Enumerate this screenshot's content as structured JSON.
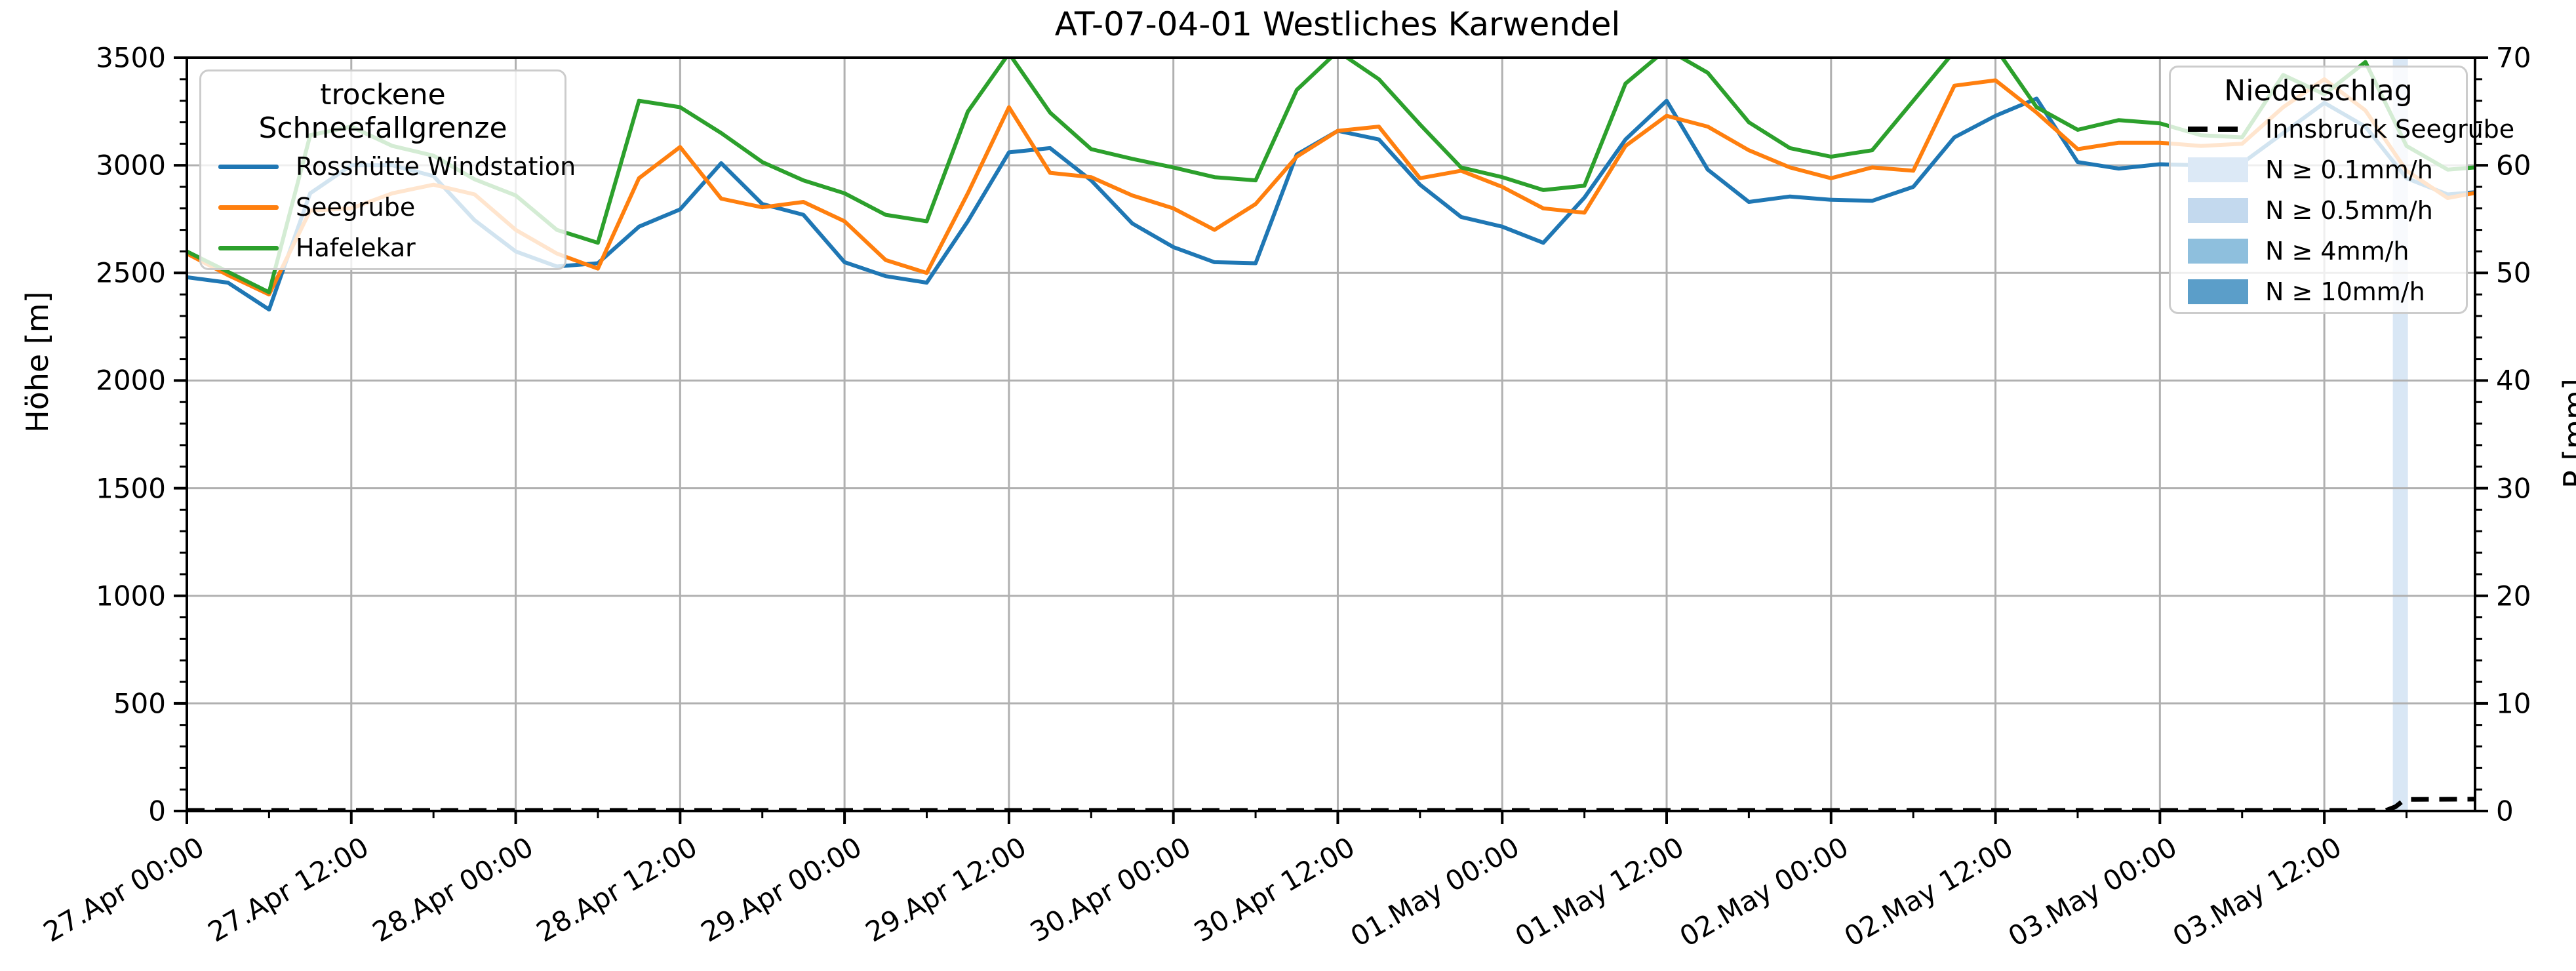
{
  "title": "AT-07-04-01 Westliches Karwendel",
  "chart_data": {
    "type": "line",
    "title": "AT-07-04-01 Westliches Karwendel",
    "x_axis": {
      "major_interval_hours": 12,
      "minor_interval_hours": 6,
      "total_hours": 167,
      "major_tick_labels": [
        "27.Apr 00:00",
        "27.Apr 12:00",
        "28.Apr 00:00",
        "28.Apr 12:00",
        "29.Apr 00:00",
        "29.Apr 12:00",
        "30.Apr 00:00",
        "30.Apr 12:00",
        "01.May 00:00",
        "01.May 12:00",
        "02.May 00:00",
        "02.May 12:00",
        "03.May 00:00",
        "03.May 12:00"
      ]
    },
    "y_left": {
      "label": "Höhe [m]",
      "min": 0,
      "max": 3500,
      "major_step": 500,
      "minor_step": 100,
      "tick_labels": [
        "0",
        "500",
        "1000",
        "1500",
        "2000",
        "2500",
        "3000",
        "3500"
      ]
    },
    "y_right": {
      "label": "P [mm]",
      "min": 0,
      "max": 70,
      "major_step": 10,
      "minor_step": 2,
      "tick_labels": [
        "0",
        "10",
        "20",
        "30",
        "40",
        "50",
        "60",
        "70"
      ]
    },
    "grid": true,
    "legend_left": {
      "title": "trockene Schneefallgrenze",
      "entries": [
        {
          "label": "Rosshütte Windstation",
          "color": "#1f77b4"
        },
        {
          "label": "Seegrube",
          "color": "#ff7f0e"
        },
        {
          "label": "Hafelekar",
          "color": "#2ca02c"
        }
      ]
    },
    "legend_right": {
      "title": "Niederschlag",
      "entries": [
        {
          "label": "Innsbruck Seegrube",
          "type": "dash",
          "color": "#000000"
        },
        {
          "label": "N ≥ 0.1mm/h",
          "type": "patch",
          "color": "#dce9f6"
        },
        {
          "label": "N ≥ 0.5mm/h",
          "type": "patch",
          "color": "#c3d9ee"
        },
        {
          "label": "N ≥ 4mm/h",
          "type": "patch",
          "color": "#8ebfdd"
        },
        {
          "label": "N ≥ 10mm/h",
          "type": "patch",
          "color": "#5b9ec9"
        }
      ]
    },
    "series_hours": [
      0,
      3,
      6,
      9,
      12,
      15,
      18,
      21,
      24,
      27,
      30,
      33,
      36,
      39,
      42,
      45,
      48,
      51,
      54,
      57,
      60,
      63,
      66,
      69,
      72,
      75,
      78,
      81,
      84,
      87,
      90,
      93,
      96,
      99,
      102,
      105,
      108,
      111,
      114,
      117,
      120,
      123,
      126,
      129,
      132,
      135,
      138,
      141,
      144,
      147,
      150,
      153,
      156,
      159,
      162,
      165,
      167
    ],
    "series": [
      {
        "name": "Rosshütte Windstation",
        "color": "#1f77b4",
        "values": [
          2480,
          2455,
          2330,
          2870,
          3000,
          3000,
          2950,
          2745,
          2600,
          2530,
          2545,
          2715,
          2795,
          3010,
          2820,
          2770,
          2550,
          2485,
          2455,
          2740,
          3060,
          3080,
          2930,
          2730,
          2620,
          2550,
          2545,
          3050,
          3160,
          3120,
          2910,
          2760,
          2715,
          2640,
          2850,
          3120,
          3300,
          2980,
          2830,
          2855,
          2840,
          2835,
          2900,
          3130,
          3230,
          3310,
          3015,
          2985,
          3005,
          3000,
          3010,
          3150,
          3290,
          3180,
          2940,
          2865,
          2875
        ]
      },
      {
        "name": "Seegrube",
        "color": "#ff7f0e",
        "values": [
          2590,
          2490,
          2400,
          2790,
          2800,
          2870,
          2910,
          2865,
          2700,
          2590,
          2520,
          2940,
          3085,
          2845,
          2805,
          2830,
          2740,
          2560,
          2500,
          2870,
          3270,
          2965,
          2945,
          2860,
          2800,
          2700,
          2820,
          3040,
          3160,
          3180,
          2940,
          2975,
          2900,
          2800,
          2780,
          3090,
          3230,
          3180,
          3070,
          2990,
          2940,
          2990,
          2975,
          3370,
          3395,
          3245,
          3075,
          3105,
          3105,
          3090,
          3100,
          3270,
          3400,
          3255,
          2975,
          2848,
          2872
        ]
      },
      {
        "name": "Hafelekar",
        "color": "#2ca02c",
        "values": [
          2600,
          2505,
          2410,
          3140,
          3180,
          3090,
          3045,
          2935,
          2860,
          2700,
          2640,
          3300,
          3270,
          3150,
          3015,
          2930,
          2870,
          2770,
          2740,
          3250,
          3520,
          3245,
          3075,
          3030,
          2990,
          2945,
          2930,
          3350,
          3530,
          3400,
          3190,
          2990,
          2945,
          2885,
          2905,
          3380,
          3540,
          3430,
          3200,
          3080,
          3040,
          3070,
          3300,
          3530,
          3545,
          3270,
          3165,
          3210,
          3195,
          3140,
          3130,
          3420,
          3330,
          3480,
          3090,
          2980,
          2990
        ]
      }
    ],
    "precipitation": {
      "station": "Innsbruck Seegrube",
      "cumulative_mm_points": [
        [
          0,
          0.06
        ],
        [
          160.5,
          0.06
        ],
        [
          161.2,
          0.4
        ],
        [
          161.8,
          1.0
        ],
        [
          162.2,
          1.08
        ],
        [
          167,
          1.1
        ]
      ],
      "bands": [
        {
          "start_hour": 161,
          "end_hour": 162.1,
          "category": "N ≥ 0.1mm/h",
          "color": "#d9e7f5"
        }
      ]
    }
  }
}
